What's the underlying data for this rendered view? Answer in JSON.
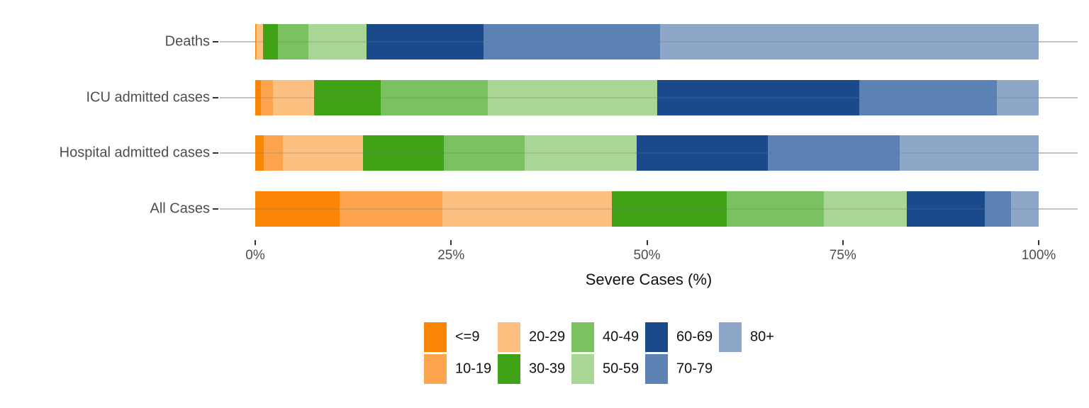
{
  "chart_data": {
    "type": "bar",
    "orientation": "horizontal",
    "stacked": true,
    "title": "",
    "xlabel": "Severe Cases (%)",
    "ylabel": "",
    "xlim": [
      0,
      100
    ],
    "x_ticks": [
      "0%",
      "25%",
      "50%",
      "75%",
      "100%"
    ],
    "x_tick_values": [
      0,
      25,
      50,
      75,
      100
    ],
    "grid": "horizontal-only",
    "legend_position": "bottom",
    "categories": [
      "Deaths",
      "ICU admitted cases",
      "Hospital admitted cases",
      "All Cases"
    ],
    "series": [
      {
        "name": "<=9",
        "color": "#FB8605",
        "values": [
          0.1,
          0.7,
          1.1,
          10.8
        ]
      },
      {
        "name": "10-19",
        "color": "#FDA44F",
        "values": [
          0.1,
          1.6,
          2.4,
          13.1
        ]
      },
      {
        "name": "20-29",
        "color": "#FCC181",
        "values": [
          0.8,
          5.2,
          10.3,
          21.6
        ]
      },
      {
        "name": "30-39",
        "color": "#3FA315",
        "values": [
          1.9,
          8.5,
          10.3,
          14.7
        ]
      },
      {
        "name": "40-49",
        "color": "#7AC25F",
        "values": [
          3.9,
          13.7,
          10.3,
          12.4
        ]
      },
      {
        "name": "50-59",
        "color": "#A9D595",
        "values": [
          7.4,
          21.6,
          14.3,
          10.6
        ]
      },
      {
        "name": "60-69",
        "color": "#1A4A8C",
        "values": [
          14.9,
          25.8,
          16.7,
          9.9
        ]
      },
      {
        "name": "70-79",
        "color": "#5C81B5",
        "values": [
          22.6,
          17.6,
          16.9,
          3.4
        ]
      },
      {
        "name": "80+",
        "color": "#8EA6C8",
        "values": [
          48.3,
          5.3,
          17.7,
          3.5
        ]
      }
    ],
    "legend_order_column_major": [
      [
        "<=9",
        "10-19"
      ],
      [
        "20-29",
        "30-39"
      ],
      [
        "40-49",
        "50-59"
      ],
      [
        "60-69",
        "70-79"
      ],
      [
        "80+"
      ]
    ]
  }
}
